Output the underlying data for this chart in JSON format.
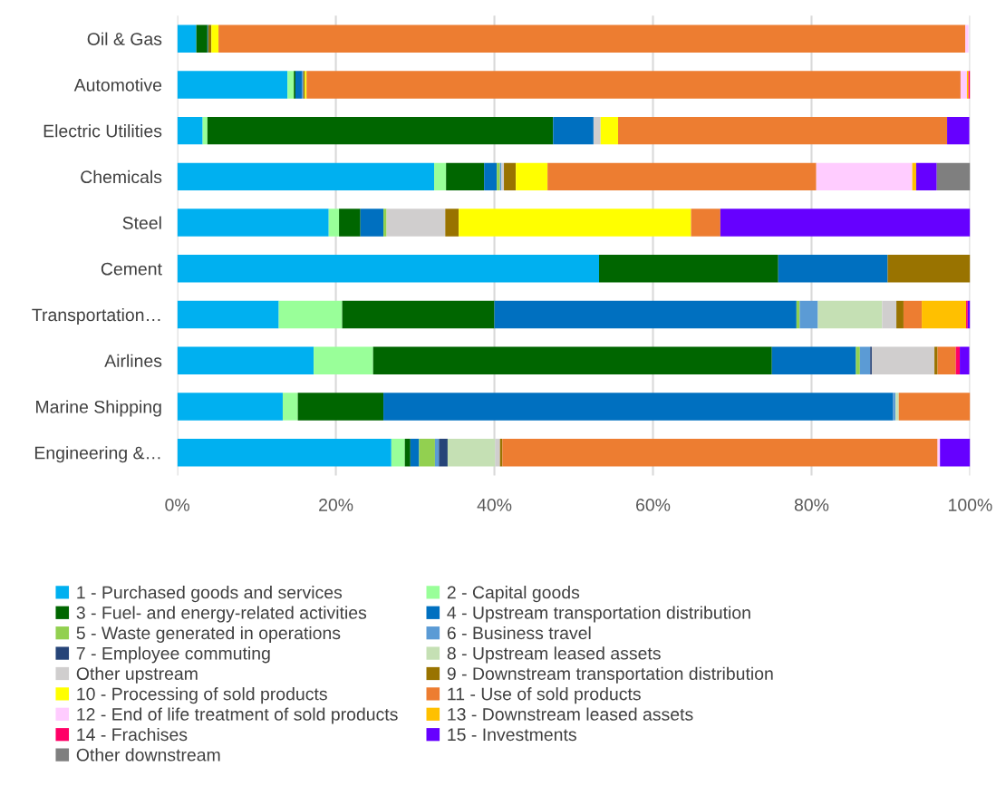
{
  "chart_data": {
    "type": "bar",
    "orientation": "horizontal",
    "stacked": true,
    "grid": "x",
    "legend": "bottom",
    "categories": [
      "Oil & Gas",
      "Automotive",
      "Electric Utilities",
      "Chemicals",
      "Steel",
      "Cement",
      "Transportation…",
      "Airlines",
      "Marine Shipping",
      "Engineering &…"
    ],
    "xlim": [
      0,
      100
    ],
    "xticks": [
      {
        "value": 0,
        "label": "0%"
      },
      {
        "value": 20,
        "label": "20%"
      },
      {
        "value": 40,
        "label": "40%"
      },
      {
        "value": 60,
        "label": "60%"
      },
      {
        "value": 80,
        "label": "80%"
      },
      {
        "value": 100,
        "label": "100%"
      }
    ],
    "series": [
      {
        "name": "1 - Purchased goods and services",
        "color": "#00b0f0",
        "values": [
          2.4,
          13.9,
          3.2,
          32.4,
          19.1,
          53.2,
          12.8,
          17.2,
          13.3,
          27.0
        ]
      },
      {
        "name": "2 - Capital goods",
        "color": "#99ff99",
        "values": [
          null,
          0.8,
          0.6,
          1.5,
          1.3,
          0,
          8.0,
          7.5,
          1.9,
          1.7
        ]
      },
      {
        "name": "3 - Fuel- and energy-related activities",
        "color": "#006600",
        "values": [
          1.4,
          0.2,
          43.6,
          4.8,
          2.7,
          22.6,
          19.2,
          50.3,
          10.8,
          0.7
        ]
      },
      {
        "name": "4 - Upstream transportation distribution",
        "color": "#0070c0",
        "values": [
          0.1,
          0.8,
          5.1,
          1.6,
          2.9,
          13.8,
          38.1,
          10.6,
          64.3,
          1.1
        ]
      },
      {
        "name": "5 - Waste generated in operations",
        "color": "#92d050",
        "values": [
          0,
          0,
          0,
          0.4,
          0.4,
          0,
          0.4,
          0.5,
          0,
          2.0
        ]
      },
      {
        "name": "6 - Business travel",
        "color": "#5b9bd5",
        "values": [
          0,
          0.2,
          0,
          0.2,
          0,
          0,
          2.3,
          1.3,
          0.3,
          0.5
        ]
      },
      {
        "name": "7 - Employee commuting",
        "color": "#264478",
        "values": [
          0,
          0,
          0,
          0,
          0,
          0,
          0,
          0.2,
          0,
          1.1
        ]
      },
      {
        "name": "8 - Upstream leased assets",
        "color": "#c5e0b4",
        "values": [
          0,
          0,
          0,
          0,
          0,
          0,
          8.1,
          0,
          0.4,
          6.0
        ]
      },
      {
        "name": "Other upstream",
        "color": "#d0cece",
        "values": [
          0,
          0,
          0.9,
          0.3,
          7.4,
          0,
          1.8,
          7.9,
          0,
          0.6
        ]
      },
      {
        "name": "9 - Downstream transportation distribution",
        "color": "#997300",
        "values": [
          0.4,
          0.2,
          0,
          1.5,
          1.7,
          10.4,
          0.9,
          0.4,
          0,
          0.3
        ]
      },
      {
        "name": "10 - Processing of sold products",
        "color": "#ffff00",
        "values": [
          0.9,
          0.2,
          2.2,
          4.0,
          29.3,
          0,
          0,
          0,
          0,
          0
        ]
      },
      {
        "name": "11 - Use of sold products",
        "color": "#ed7d31",
        "values": [
          94.2,
          82.5,
          41.5,
          33.9,
          3.7,
          0,
          2.3,
          2.3,
          9.0,
          54.9
        ]
      },
      {
        "name": "12 - End of life treatment of sold products",
        "color": "#ffccff",
        "values": [
          0.4,
          0.8,
          0,
          12.1,
          0,
          0,
          0,
          null,
          0,
          0.3
        ]
      },
      {
        "name": "13 - Downstream leased assets",
        "color": "#ffc000",
        "values": [
          0,
          0.2,
          0,
          0.5,
          0,
          0,
          5.6,
          0,
          0,
          0
        ]
      },
      {
        "name": "14 - Frachises",
        "color": "#ff0066",
        "values": [
          0,
          0.2,
          0,
          0,
          0,
          0,
          0.2,
          0.5,
          0,
          0
        ]
      },
      {
        "name": "15 - Investments",
        "color": "#6600ff",
        "values": [
          null,
          0,
          2.8,
          2.6,
          31.5,
          0,
          0.3,
          1.2,
          0,
          3.8
        ]
      },
      {
        "name": "Other downstream",
        "color": "#7f7f7f",
        "values": [
          0,
          0,
          null,
          4.2,
          0,
          0,
          0,
          0,
          0,
          0
        ]
      }
    ]
  }
}
